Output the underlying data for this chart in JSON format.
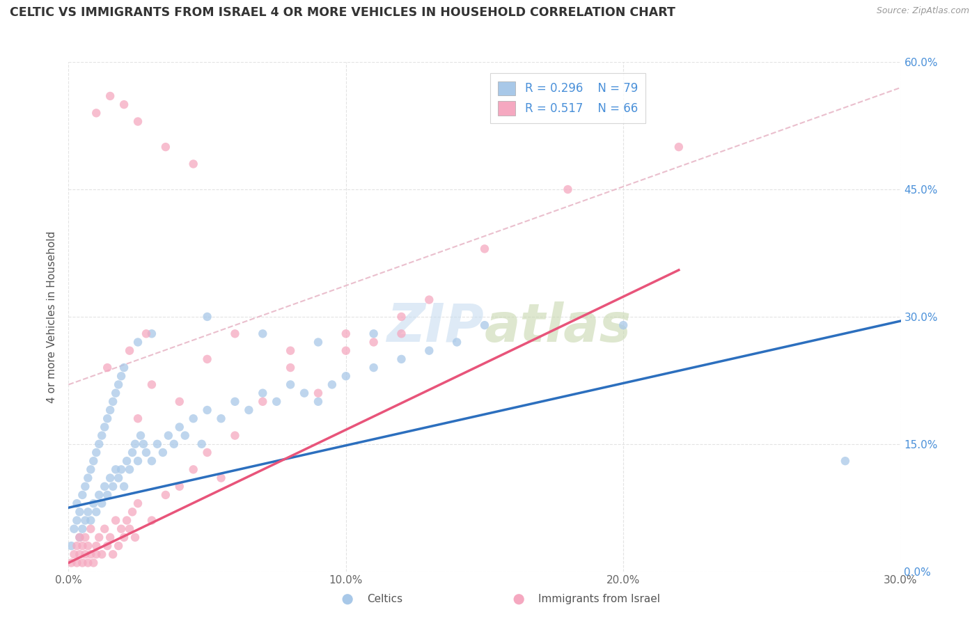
{
  "title": "CELTIC VS IMMIGRANTS FROM ISRAEL 4 OR MORE VEHICLES IN HOUSEHOLD CORRELATION CHART",
  "source": "Source: ZipAtlas.com",
  "ylabel": "4 or more Vehicles in Household",
  "xlim": [
    0.0,
    0.3
  ],
  "ylim": [
    0.0,
    0.6
  ],
  "xtick_labels": [
    "0.0%",
    "10.0%",
    "20.0%",
    "30.0%"
  ],
  "xtick_values": [
    0.0,
    0.1,
    0.2,
    0.3
  ],
  "ytick_labels": [
    "0.0%",
    "15.0%",
    "30.0%",
    "45.0%",
    "60.0%"
  ],
  "ytick_values": [
    0.0,
    0.15,
    0.3,
    0.45,
    0.6
  ],
  "legend_labels": [
    "Celtics",
    "Immigrants from Israel"
  ],
  "legend_r": [
    "R = 0.296",
    "R = 0.517"
  ],
  "legend_n": [
    "N = 79",
    "N = 66"
  ],
  "celtics_color": "#a8c8e8",
  "israel_color": "#f5a8c0",
  "celtics_line_color": "#2c6fbe",
  "israel_line_color": "#e8547a",
  "dash_line_color": "#e8a8b8",
  "watermark": "ZIPatlas",
  "celtics_scatter_x": [
    0.001,
    0.002,
    0.003,
    0.003,
    0.004,
    0.004,
    0.005,
    0.005,
    0.006,
    0.006,
    0.007,
    0.007,
    0.008,
    0.008,
    0.009,
    0.009,
    0.01,
    0.01,
    0.011,
    0.011,
    0.012,
    0.012,
    0.013,
    0.013,
    0.014,
    0.014,
    0.015,
    0.015,
    0.016,
    0.016,
    0.017,
    0.017,
    0.018,
    0.018,
    0.019,
    0.019,
    0.02,
    0.02,
    0.021,
    0.022,
    0.023,
    0.024,
    0.025,
    0.026,
    0.027,
    0.028,
    0.03,
    0.032,
    0.034,
    0.036,
    0.038,
    0.04,
    0.042,
    0.045,
    0.048,
    0.05,
    0.055,
    0.06,
    0.065,
    0.07,
    0.075,
    0.08,
    0.085,
    0.09,
    0.095,
    0.1,
    0.11,
    0.12,
    0.13,
    0.14,
    0.025,
    0.03,
    0.05,
    0.07,
    0.09,
    0.11,
    0.15,
    0.2,
    0.28
  ],
  "celtics_scatter_y": [
    0.03,
    0.05,
    0.06,
    0.08,
    0.04,
    0.07,
    0.05,
    0.09,
    0.06,
    0.1,
    0.07,
    0.11,
    0.06,
    0.12,
    0.08,
    0.13,
    0.07,
    0.14,
    0.09,
    0.15,
    0.08,
    0.16,
    0.1,
    0.17,
    0.09,
    0.18,
    0.11,
    0.19,
    0.1,
    0.2,
    0.12,
    0.21,
    0.11,
    0.22,
    0.12,
    0.23,
    0.1,
    0.24,
    0.13,
    0.12,
    0.14,
    0.15,
    0.13,
    0.16,
    0.15,
    0.14,
    0.13,
    0.15,
    0.14,
    0.16,
    0.15,
    0.17,
    0.16,
    0.18,
    0.15,
    0.19,
    0.18,
    0.2,
    0.19,
    0.21,
    0.2,
    0.22,
    0.21,
    0.2,
    0.22,
    0.23,
    0.24,
    0.25,
    0.26,
    0.27,
    0.27,
    0.28,
    0.3,
    0.28,
    0.27,
    0.28,
    0.29,
    0.29,
    0.13
  ],
  "israel_scatter_x": [
    0.001,
    0.002,
    0.003,
    0.003,
    0.004,
    0.004,
    0.005,
    0.005,
    0.006,
    0.006,
    0.007,
    0.007,
    0.008,
    0.008,
    0.009,
    0.01,
    0.01,
    0.011,
    0.012,
    0.013,
    0.014,
    0.015,
    0.016,
    0.017,
    0.018,
    0.019,
    0.02,
    0.021,
    0.022,
    0.023,
    0.024,
    0.025,
    0.03,
    0.035,
    0.04,
    0.045,
    0.05,
    0.055,
    0.06,
    0.07,
    0.08,
    0.09,
    0.1,
    0.11,
    0.12,
    0.13,
    0.025,
    0.03,
    0.04,
    0.05,
    0.06,
    0.08,
    0.1,
    0.12,
    0.014,
    0.022,
    0.028,
    0.15,
    0.18,
    0.22,
    0.01,
    0.015,
    0.02,
    0.025,
    0.035,
    0.045
  ],
  "israel_scatter_y": [
    0.01,
    0.02,
    0.03,
    0.01,
    0.02,
    0.04,
    0.01,
    0.03,
    0.02,
    0.04,
    0.01,
    0.03,
    0.02,
    0.05,
    0.01,
    0.02,
    0.03,
    0.04,
    0.02,
    0.05,
    0.03,
    0.04,
    0.02,
    0.06,
    0.03,
    0.05,
    0.04,
    0.06,
    0.05,
    0.07,
    0.04,
    0.08,
    0.06,
    0.09,
    0.1,
    0.12,
    0.14,
    0.11,
    0.16,
    0.2,
    0.24,
    0.21,
    0.26,
    0.27,
    0.28,
    0.32,
    0.18,
    0.22,
    0.2,
    0.25,
    0.28,
    0.26,
    0.28,
    0.3,
    0.24,
    0.26,
    0.28,
    0.38,
    0.45,
    0.5,
    0.54,
    0.56,
    0.55,
    0.53,
    0.5,
    0.48
  ]
}
